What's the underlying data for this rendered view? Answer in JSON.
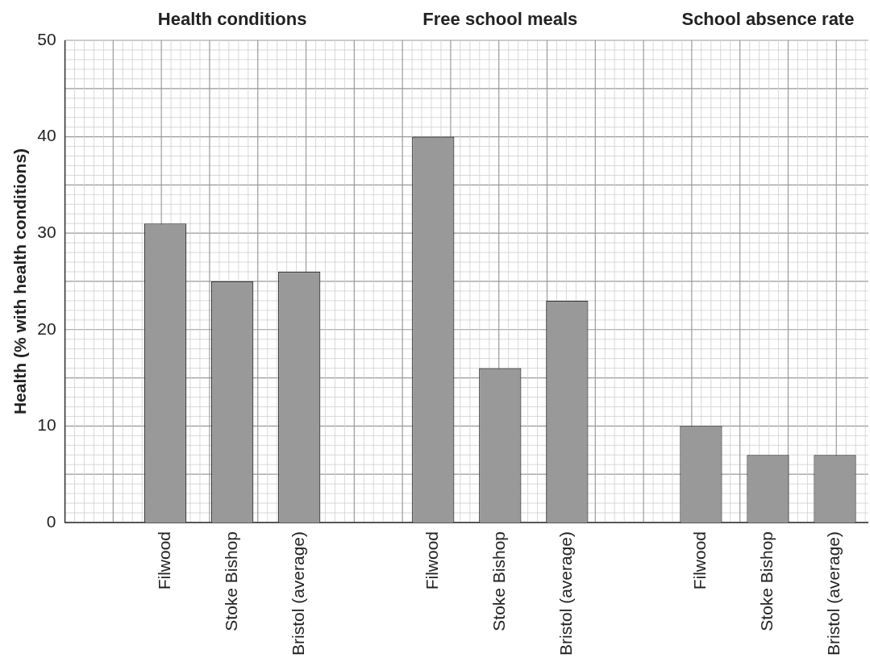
{
  "chart_data": {
    "type": "bar",
    "ylabel": "Health (% with health conditions)",
    "categories": [
      null,
      "Filwood",
      "Stoke Bishop",
      "Bristol (average)",
      null,
      "Filwood",
      "Stoke Bishop",
      "Bristol (average)",
      null,
      "Filwood",
      "Stoke Bishop",
      "Bristol (average)"
    ],
    "values": [
      null,
      31,
      25,
      26,
      null,
      40,
      16,
      23,
      null,
      10,
      7,
      7
    ],
    "color": "#999999",
    "annotations": [
      "Health conditions",
      "Free school meals",
      "School absence rate"
    ],
    "ylim": [
      0,
      50
    ],
    "yticks": [
      0,
      10,
      20,
      30,
      40,
      50
    ],
    "grid": true
  }
}
